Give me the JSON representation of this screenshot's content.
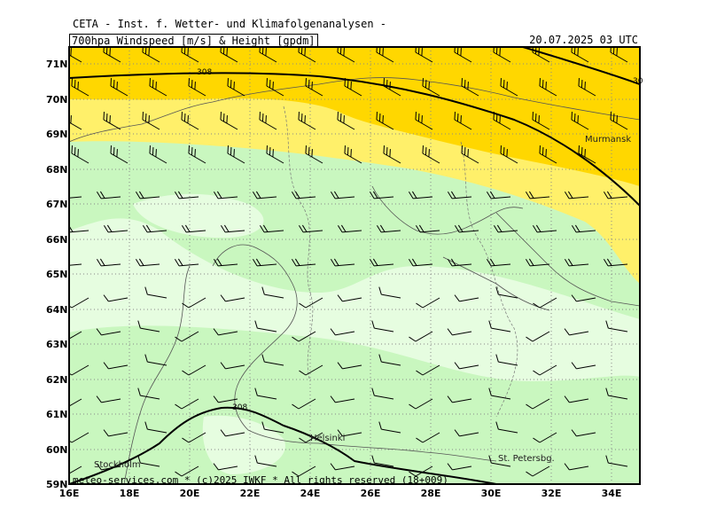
{
  "header": {
    "title": "CETA - Inst. f. Wetter- und Klimafolgenanalysen -",
    "product": "700hpa_Windspeed [m/s] & Height [gpdm]",
    "valid_time": "20.07.2025 03 UTC"
  },
  "axes": {
    "lat_labels": [
      "71N",
      "70N",
      "69N",
      "68N",
      "67N",
      "66N",
      "65N",
      "64N",
      "63N",
      "62N",
      "61N",
      "60N",
      "59N"
    ],
    "lon_labels": [
      "16E",
      "18E",
      "20E",
      "22E",
      "24E",
      "26E",
      "28E",
      "30E",
      "32E",
      "34E"
    ]
  },
  "contours": {
    "north_label": "308",
    "north_label_right": "30",
    "south_label": "308"
  },
  "places": {
    "murmansk": "Murmansk",
    "helsinki": "Helsinki",
    "stockholm": "Stockholm",
    "st_petersburg": "St. Petersbg."
  },
  "footer": "meteo-services.com * (c)2025 IWKF * All rights reserved (18+009)",
  "colors": {
    "band_gold": "#ffd700",
    "band_yellow": "#fff06a",
    "band_green": "#c9f7bf",
    "band_lightgreen": "#e6fde0",
    "frame": "#000000"
  }
}
